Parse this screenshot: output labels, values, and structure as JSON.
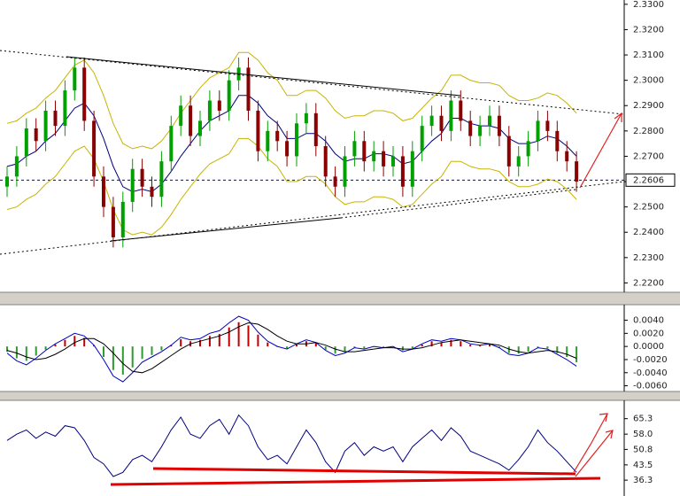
{
  "chart_data": [
    {
      "type": "candlestick",
      "open": [
        2.258,
        2.262,
        2.27,
        2.281,
        2.276,
        2.288,
        2.282,
        2.296,
        2.305,
        2.284,
        2.262,
        2.25,
        2.238,
        2.252,
        2.265,
        2.258,
        2.254,
        2.268,
        2.282,
        2.29,
        2.278,
        2.284,
        2.292,
        2.288,
        2.3,
        2.305,
        2.288,
        2.272,
        2.28,
        2.276,
        2.27,
        2.283,
        2.287,
        2.274,
        2.262,
        2.258,
        2.27,
        2.276,
        2.268,
        2.272,
        2.266,
        2.27,
        2.258,
        2.272,
        2.282,
        2.286,
        2.28,
        2.292,
        2.284,
        2.278,
        2.282,
        2.286,
        2.278,
        2.266,
        2.27,
        2.276,
        2.284,
        2.28,
        2.272,
        2.268
      ],
      "high": [
        2.266,
        2.274,
        2.285,
        2.285,
        2.292,
        2.292,
        2.3,
        2.309,
        2.309,
        2.288,
        2.266,
        2.254,
        2.256,
        2.269,
        2.269,
        2.262,
        2.272,
        2.286,
        2.294,
        2.294,
        2.288,
        2.296,
        2.296,
        2.304,
        2.309,
        2.309,
        2.292,
        2.284,
        2.284,
        2.28,
        2.287,
        2.291,
        2.291,
        2.278,
        2.266,
        2.274,
        2.28,
        2.28,
        2.276,
        2.276,
        2.274,
        2.274,
        2.276,
        2.286,
        2.29,
        2.29,
        2.296,
        2.296,
        2.288,
        2.286,
        2.29,
        2.29,
        2.282,
        2.274,
        2.28,
        2.288,
        2.288,
        2.284,
        2.276,
        2.272
      ],
      "low": [
        2.254,
        2.258,
        2.266,
        2.272,
        2.272,
        2.278,
        2.278,
        2.292,
        2.28,
        2.258,
        2.246,
        2.234,
        2.234,
        2.248,
        2.254,
        2.25,
        2.25,
        2.264,
        2.278,
        2.274,
        2.274,
        2.28,
        2.284,
        2.284,
        2.296,
        2.284,
        2.268,
        2.268,
        2.272,
        2.266,
        2.266,
        2.279,
        2.27,
        2.258,
        2.254,
        2.254,
        2.266,
        2.264,
        2.264,
        2.262,
        2.262,
        2.254,
        2.254,
        2.268,
        2.278,
        2.276,
        2.276,
        2.28,
        2.274,
        2.274,
        2.278,
        2.274,
        2.262,
        2.262,
        2.266,
        2.272,
        2.276,
        2.268,
        2.264,
        2.256
      ],
      "close": [
        2.262,
        2.27,
        2.281,
        2.276,
        2.288,
        2.282,
        2.296,
        2.305,
        2.284,
        2.262,
        2.25,
        2.238,
        2.252,
        2.265,
        2.258,
        2.254,
        2.268,
        2.282,
        2.29,
        2.278,
        2.284,
        2.292,
        2.288,
        2.3,
        2.305,
        2.288,
        2.272,
        2.28,
        2.276,
        2.27,
        2.283,
        2.287,
        2.274,
        2.262,
        2.258,
        2.27,
        2.276,
        2.268,
        2.272,
        2.266,
        2.27,
        2.258,
        2.272,
        2.282,
        2.286,
        2.28,
        2.292,
        2.284,
        2.278,
        2.282,
        2.286,
        2.278,
        2.266,
        2.27,
        2.276,
        2.284,
        2.28,
        2.272,
        2.268,
        2.26
      ],
      "up_color": "#00a000",
      "down_color": "#8b0000",
      "lines": [
        {
          "color": "#c8b400",
          "values": [
            2.283,
            2.284,
            2.287,
            2.289,
            2.293,
            2.296,
            2.301,
            2.306,
            2.308,
            2.303,
            2.294,
            2.283,
            2.275,
            2.273,
            2.274,
            2.273,
            2.276,
            2.281,
            2.287,
            2.292,
            2.297,
            2.301,
            2.303,
            2.305,
            2.311,
            2.311,
            2.308,
            2.303,
            2.3,
            2.294,
            2.294,
            2.296,
            2.296,
            2.293,
            2.288,
            2.285,
            2.286,
            2.286,
            2.288,
            2.288,
            2.287,
            2.284,
            2.285,
            2.289,
            2.293,
            2.296,
            2.302,
            2.302,
            2.3,
            2.299,
            2.299,
            2.298,
            2.294,
            2.292,
            2.292,
            2.293,
            2.295,
            2.294,
            2.291,
            2.287
          ]
        },
        {
          "color": "#c8b400",
          "values": [
            2.249,
            2.25,
            2.253,
            2.255,
            2.259,
            2.262,
            2.267,
            2.272,
            2.274,
            2.269,
            2.26,
            2.249,
            2.241,
            2.239,
            2.24,
            2.239,
            2.242,
            2.247,
            2.253,
            2.258,
            2.263,
            2.267,
            2.269,
            2.271,
            2.277,
            2.277,
            2.274,
            2.269,
            2.266,
            2.26,
            2.26,
            2.262,
            2.262,
            2.259,
            2.254,
            2.251,
            2.252,
            2.252,
            2.254,
            2.254,
            2.253,
            2.25,
            2.251,
            2.255,
            2.259,
            2.262,
            2.268,
            2.268,
            2.266,
            2.265,
            2.265,
            2.264,
            2.26,
            2.258,
            2.258,
            2.259,
            2.261,
            2.26,
            2.257,
            2.253
          ]
        },
        {
          "color": "#000080",
          "values": [
            2.266,
            2.267,
            2.27,
            2.272,
            2.276,
            2.279,
            2.284,
            2.289,
            2.291,
            2.286,
            2.277,
            2.266,
            2.258,
            2.256,
            2.257,
            2.256,
            2.259,
            2.264,
            2.27,
            2.275,
            2.28,
            2.284,
            2.286,
            2.288,
            2.294,
            2.294,
            2.291,
            2.286,
            2.283,
            2.277,
            2.277,
            2.279,
            2.279,
            2.276,
            2.271,
            2.268,
            2.269,
            2.269,
            2.271,
            2.271,
            2.27,
            2.267,
            2.268,
            2.272,
            2.276,
            2.279,
            2.285,
            2.285,
            2.283,
            2.282,
            2.282,
            2.281,
            2.277,
            2.275,
            2.275,
            2.276,
            2.278,
            2.277,
            2.274,
            2.27
          ]
        }
      ],
      "last_price": 2.2606,
      "ylim": [
        2.217,
        2.331
      ],
      "yticks": [
        {
          "value": 2.22,
          "label": "2.2200"
        },
        {
          "value": 2.23,
          "label": "2.2300"
        },
        {
          "value": 2.24,
          "label": "2.2400"
        },
        {
          "value": 2.25,
          "label": "2.2500"
        },
        {
          "value": 2.26,
          "label": "2.2600"
        },
        {
          "value": 2.27,
          "label": "2.2700"
        },
        {
          "value": 2.28,
          "label": "2.2800"
        },
        {
          "value": 2.29,
          "label": "2.2900"
        },
        {
          "value": 2.3,
          "label": "2.3000"
        },
        {
          "value": 2.31,
          "label": "2.3100"
        },
        {
          "value": 2.32,
          "label": "2.3200"
        },
        {
          "value": 2.33,
          "label": "2.3300"
        }
      ]
    },
    {
      "type": "macd",
      "histogram": [
        -0.0008,
        -0.0018,
        -0.0022,
        -0.0014,
        -0.0005,
        0.0003,
        0.001,
        0.0016,
        0.0013,
        0.0002,
        -0.0016,
        -0.0036,
        -0.0043,
        -0.0032,
        -0.0019,
        -0.0013,
        -0.0006,
        0.0002,
        0.0011,
        0.0008,
        0.001,
        0.0016,
        0.0019,
        0.0029,
        0.0037,
        0.0032,
        0.0018,
        0.0006,
        0.0,
        -0.0003,
        0.0003,
        0.0008,
        0.0005,
        -0.0005,
        -0.0011,
        -0.0008,
        -0.0002,
        -0.0003,
        0.0,
        -0.0002,
        0.0,
        -0.0006,
        -0.0003,
        0.0003,
        0.0008,
        0.0006,
        0.001,
        0.0008,
        0.0003,
        0.0002,
        0.0003,
        -0.0002,
        -0.001,
        -0.0011,
        -0.0008,
        -0.0002,
        -0.0003,
        -0.001,
        -0.0016,
        -0.0024
      ],
      "up_color": "#c00000",
      "down_color": "#2e9b2e",
      "series": [
        {
          "color": "#0000c0",
          "values": [
            -0.001,
            -0.0022,
            -0.0028,
            -0.0018,
            -0.0006,
            0.0004,
            0.0012,
            0.002,
            0.0016,
            0.0002,
            -0.002,
            -0.0045,
            -0.0054,
            -0.004,
            -0.0024,
            -0.0016,
            -0.0008,
            0.0002,
            0.0014,
            0.001,
            0.0012,
            0.002,
            0.0024,
            0.0036,
            0.0046,
            0.004,
            0.0022,
            0.0008,
            0.0,
            -0.0004,
            0.0004,
            0.001,
            0.0006,
            -0.0006,
            -0.0014,
            -0.001,
            -0.0002,
            -0.0004,
            0.0,
            -0.0002,
            0.0,
            -0.0008,
            -0.0004,
            0.0004,
            0.001,
            0.0008,
            0.0012,
            0.001,
            0.0004,
            0.0002,
            0.0004,
            -0.0002,
            -0.0012,
            -0.0014,
            -0.001,
            -0.0002,
            -0.0004,
            -0.0012,
            -0.002,
            -0.003
          ]
        },
        {
          "color": "#000000",
          "values": [
            -0.0006,
            -0.001,
            -0.0016,
            -0.002,
            -0.0018,
            -0.0012,
            -0.0004,
            0.0006,
            0.0012,
            0.0012,
            0.0004,
            -0.001,
            -0.0026,
            -0.0038,
            -0.004,
            -0.0034,
            -0.0024,
            -0.0014,
            -0.0004,
            0.0004,
            0.0008,
            0.0012,
            0.0016,
            0.0022,
            0.003,
            0.0036,
            0.0034,
            0.0026,
            0.0016,
            0.0008,
            0.0004,
            0.0004,
            0.0006,
            0.0002,
            -0.0004,
            -0.0008,
            -0.0008,
            -0.0006,
            -0.0004,
            -0.0002,
            -0.0002,
            -0.0004,
            -0.0004,
            -0.0002,
            0.0002,
            0.0006,
            0.0008,
            0.001,
            0.0008,
            0.0006,
            0.0004,
            0.0002,
            -0.0004,
            -0.0008,
            -0.001,
            -0.0008,
            -0.0006,
            -0.0008,
            -0.0012,
            -0.0018
          ]
        }
      ],
      "ylim": [
        -0.0066,
        0.0061
      ],
      "yticks": [
        {
          "value": 0.004,
          "label": "0.0040"
        },
        {
          "value": 0.002,
          "label": "0.0020"
        },
        {
          "value": 0,
          "label": "0.0000"
        },
        {
          "value": -0.002,
          "label": "-0.0020"
        },
        {
          "value": -0.004,
          "label": "-0.0040"
        },
        {
          "value": -0.006,
          "label": "-0.0060"
        }
      ]
    },
    {
      "type": "line",
      "series": [
        {
          "color": "#000080",
          "values": [
            55,
            58,
            60,
            56,
            59,
            57,
            62,
            61,
            55,
            47,
            44,
            38,
            40,
            46,
            48,
            45,
            52,
            60,
            66,
            58,
            56,
            62,
            65,
            58,
            67,
            62,
            52,
            46,
            48,
            44,
            52,
            60,
            54,
            45,
            40,
            50,
            54,
            48,
            52,
            50,
            52,
            45,
            52,
            56,
            60,
            55,
            61,
            57,
            50,
            48,
            46,
            44,
            41,
            46,
            52,
            60,
            54,
            50,
            45,
            40
          ]
        }
      ],
      "ylim": [
        30.5,
        73.1
      ],
      "yticks": [
        65.3,
        {
          "value": 58,
          "label": "58.0"
        },
        50.8,
        43.5,
        36.3
      ]
    }
  ]
}
